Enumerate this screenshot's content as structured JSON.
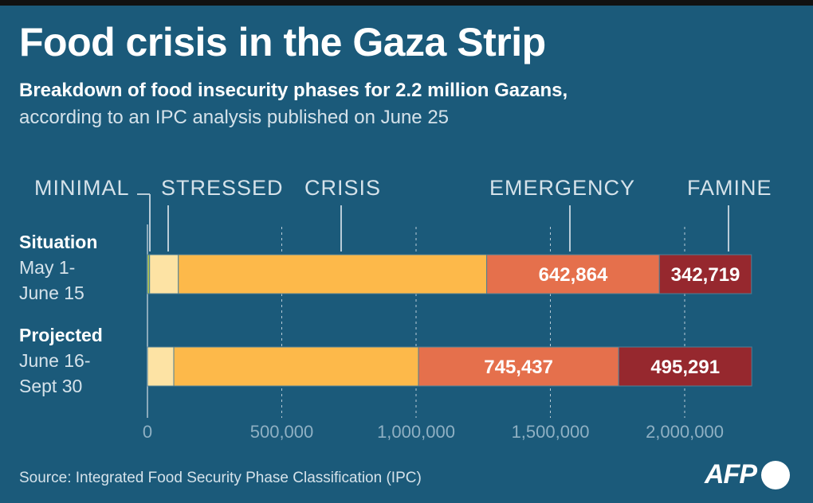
{
  "title": "Food crisis in the Gaza Strip",
  "subtitle_bold": "Breakdown of food insecurity phases for 2.2 million Gazans,",
  "subtitle": "according to an IPC analysis published on June 25",
  "source": "Source: Integrated Food Security Phase Classification (IPC)",
  "logo": "AFP",
  "rows": [
    {
      "title": "Situation",
      "period_line1": "May 1-",
      "period_line2": "June 15"
    },
    {
      "title": "Projected",
      "period_line1": "June 16-",
      "period_line2": "Sept 30"
    }
  ],
  "chart_data": {
    "type": "bar",
    "orientation": "horizontal-stacked",
    "categories": [
      "Situation May 1-June 15",
      "Projected June 16-Sept 30"
    ],
    "series": [
      {
        "name": "MINIMAL",
        "color": "#b5c94a",
        "values": [
          8000,
          0
        ]
      },
      {
        "name": "STRESSED",
        "color": "#fde3a4",
        "values": [
          107000,
          98000
        ]
      },
      {
        "name": "CRISIS",
        "color": "#fdb94a",
        "values": [
          1148000,
          911000
        ]
      },
      {
        "name": "EMERGENCY",
        "color": "#e5704c",
        "values": [
          642864,
          745437
        ],
        "labels": [
          "642,864",
          "745,437"
        ]
      },
      {
        "name": "FAMINE",
        "color": "#96282e",
        "values": [
          342719,
          495291
        ],
        "labels": [
          "342,719",
          "495,291"
        ]
      }
    ],
    "xlim": [
      0,
      2250000
    ],
    "xticks": [
      0,
      500000,
      1000000,
      1500000,
      2000000
    ],
    "xtick_labels": [
      "0",
      "500,000",
      "1,000,000",
      "1,500,000",
      "2,000,000"
    ],
    "grid": "vertical dashed",
    "legend": "top, labels with leader lines"
  }
}
